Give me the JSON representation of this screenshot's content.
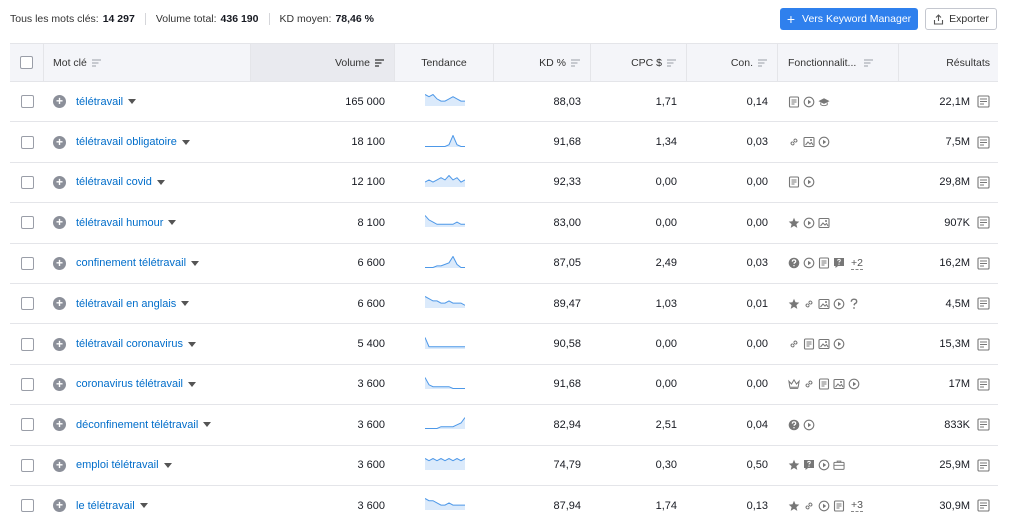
{
  "summary": {
    "total_keywords_label": "Tous les mots clés:",
    "total_keywords_value": "14 297",
    "total_volume_label": "Volume total:",
    "total_volume_value": "436 190",
    "kd_avg_label": "KD moyen:",
    "kd_avg_value": "78,46 %"
  },
  "toolbar": {
    "keyword_manager_label": "Vers Keyword Manager",
    "export_label": "Exporter"
  },
  "columns": {
    "keyword": "Mot clé",
    "volume": "Volume",
    "trend": "Tendance",
    "kd": "KD %",
    "cpc": "CPC $",
    "com": "Con.",
    "features": "Fonctionnalit...",
    "results": "Résultats"
  },
  "colors": {
    "link": "#006dca",
    "primary_button": "#2f80ed",
    "sparkline": "#4d98e8",
    "sparkline_fill": "#dbeafb",
    "icon_gray": "#8b8f99"
  },
  "rows": [
    {
      "keyword": "télétravail",
      "volume": "165 000",
      "kd": "88,03",
      "cpc": "1,71",
      "com": "0,14",
      "features": [
        "doc-icon",
        "video-icon",
        "graduation-cap-icon"
      ],
      "more": "",
      "results": "22,1M",
      "trend": [
        5,
        4,
        5,
        3,
        2,
        2,
        3,
        4,
        3,
        2,
        2
      ]
    },
    {
      "keyword": "télétravail obligatoire",
      "volume": "18 100",
      "kd": "91,68",
      "cpc": "1,34",
      "com": "0,03",
      "features": [
        "link-icon",
        "image-icon",
        "video-icon"
      ],
      "more": "",
      "results": "7,5M",
      "trend": [
        0,
        0,
        0,
        0,
        0,
        0,
        1,
        6,
        1,
        0,
        0
      ]
    },
    {
      "keyword": "télétravail covid",
      "volume": "12 100",
      "kd": "92,33",
      "cpc": "0,00",
      "com": "0,00",
      "features": [
        "doc-icon",
        "video-icon"
      ],
      "more": "",
      "results": "29,8M",
      "trend": [
        2,
        3,
        2,
        3,
        4,
        3,
        5,
        3,
        4,
        2,
        3
      ]
    },
    {
      "keyword": "télétravail humour",
      "volume": "8 100",
      "kd": "83,00",
      "cpc": "0,00",
      "com": "0,00",
      "features": [
        "star-icon",
        "video-icon",
        "image-icon"
      ],
      "more": "",
      "results": "907K",
      "trend": [
        5,
        3,
        2,
        1,
        1,
        1,
        1,
        1,
        2,
        1,
        1
      ]
    },
    {
      "keyword": "confinement télétravail",
      "volume": "6 600",
      "kd": "87,05",
      "cpc": "2,49",
      "com": "0,03",
      "features": [
        "question-icon",
        "video-icon",
        "doc-icon",
        "faq-icon"
      ],
      "more": "+2",
      "results": "16,2M",
      "trend": [
        0,
        0,
        0,
        1,
        1,
        2,
        3,
        7,
        2,
        0,
        0
      ]
    },
    {
      "keyword": "télétravail en anglais",
      "volume": "6 600",
      "kd": "89,47",
      "cpc": "1,03",
      "com": "0,01",
      "features": [
        "star-icon",
        "link-icon",
        "image-icon",
        "video-icon",
        "question-mark-icon"
      ],
      "more": "",
      "results": "4,5M",
      "trend": [
        5,
        4,
        3,
        3,
        2,
        2,
        3,
        2,
        2,
        2,
        1
      ]
    },
    {
      "keyword": "télétravail coronavirus",
      "volume": "5 400",
      "kd": "90,58",
      "cpc": "0,00",
      "com": "0,00",
      "features": [
        "link-icon",
        "doc-icon",
        "image-icon",
        "video-icon"
      ],
      "more": "",
      "results": "15,3M",
      "trend": [
        6,
        1,
        1,
        1,
        1,
        1,
        1,
        1,
        1,
        1,
        1
      ]
    },
    {
      "keyword": "coronavirus télétravail",
      "volume": "3 600",
      "kd": "91,68",
      "cpc": "0,00",
      "com": "0,00",
      "features": [
        "crown-icon",
        "link-icon",
        "doc-icon",
        "image-icon",
        "video-icon"
      ],
      "more": "",
      "results": "17M",
      "trend": [
        6,
        2,
        1,
        1,
        1,
        1,
        1,
        0,
        0,
        0,
        0
      ]
    },
    {
      "keyword": "déconfinement télétravail",
      "volume": "3 600",
      "kd": "82,94",
      "cpc": "2,51",
      "com": "0,04",
      "features": [
        "question-icon",
        "video-icon"
      ],
      "more": "",
      "results": "833K",
      "trend": [
        0,
        0,
        0,
        0,
        1,
        1,
        1,
        1,
        2,
        3,
        6
      ]
    },
    {
      "keyword": "emploi télétravail",
      "volume": "3 600",
      "kd": "74,79",
      "cpc": "0,30",
      "com": "0,50",
      "features": [
        "star-icon",
        "faq-icon",
        "video-icon",
        "briefcase-icon"
      ],
      "more": "",
      "results": "25,9M",
      "trend": [
        5,
        4,
        5,
        4,
        5,
        4,
        5,
        4,
        5,
        4,
        5
      ]
    },
    {
      "keyword": "le télétravail",
      "volume": "3 600",
      "kd": "87,94",
      "cpc": "1,74",
      "com": "0,13",
      "features": [
        "star-icon",
        "link-icon",
        "video-icon",
        "doc-icon"
      ],
      "more": "+3",
      "results": "30,9M",
      "trend": [
        5,
        4,
        4,
        3,
        2,
        2,
        3,
        2,
        2,
        2,
        2
      ]
    }
  ]
}
